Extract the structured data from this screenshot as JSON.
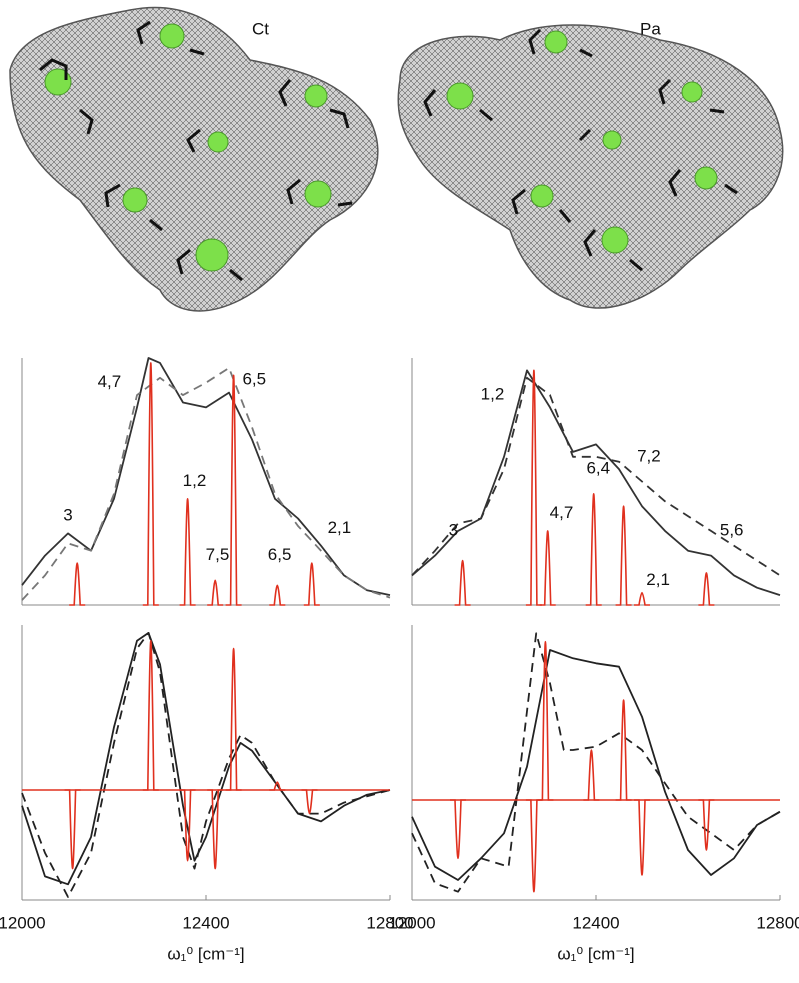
{
  "labels": {
    "left": "Ct",
    "right": "Pa"
  },
  "chart_data": [
    {
      "type": "line",
      "xlim": [
        12000,
        12800
      ],
      "ylim": [
        0,
        1.0
      ],
      "series": [
        {
          "color": "#333333",
          "style": "solid",
          "x": [
            12000,
            12050,
            12100,
            12150,
            12200,
            12250,
            12275,
            12300,
            12350,
            12400,
            12450,
            12500,
            12550,
            12600,
            12650,
            12700,
            12750,
            12800
          ],
          "values": [
            0.08,
            0.2,
            0.29,
            0.22,
            0.43,
            0.8,
            1.0,
            0.98,
            0.82,
            0.8,
            0.86,
            0.67,
            0.43,
            0.35,
            0.24,
            0.12,
            0.06,
            0.04
          ]
        },
        {
          "color": "#777777",
          "style": "dashed",
          "x": [
            12000,
            12050,
            12100,
            12150,
            12200,
            12250,
            12300,
            12350,
            12400,
            12450,
            12500,
            12550,
            12600,
            12650,
            12700,
            12750,
            12800
          ],
          "values": [
            0.02,
            0.12,
            0.25,
            0.22,
            0.45,
            0.85,
            0.92,
            0.85,
            0.9,
            0.96,
            0.72,
            0.45,
            0.32,
            0.22,
            0.12,
            0.06,
            0.03
          ]
        },
        {
          "color": "#e0301e",
          "style": "sticks",
          "x": [
            12120,
            12280,
            12360,
            12420,
            12460,
            12555,
            12630
          ],
          "values": [
            0.17,
            0.98,
            0.43,
            0.1,
            0.93,
            0.08,
            0.17
          ]
        }
      ],
      "annotations": [
        {
          "text": "3",
          "x": 12100,
          "y": 0.36
        },
        {
          "text": "4,7",
          "x": 12190,
          "y": 0.9
        },
        {
          "text": "1,2",
          "x": 12375,
          "y": 0.5
        },
        {
          "text": "7,5",
          "x": 12425,
          "y": 0.2
        },
        {
          "text": "6,5",
          "x": 12505,
          "y": 0.91
        },
        {
          "text": "6,5",
          "x": 12560,
          "y": 0.2
        },
        {
          "text": "2,1",
          "x": 12690,
          "y": 0.31
        }
      ]
    },
    {
      "type": "line",
      "xlim": [
        12000,
        12800
      ],
      "ylim": [
        0,
        1.0
      ],
      "series": [
        {
          "color": "#333333",
          "style": "solid",
          "x": [
            12000,
            12050,
            12100,
            12150,
            12200,
            12250,
            12300,
            12350,
            12400,
            12450,
            12500,
            12550,
            12600,
            12650,
            12700,
            12750,
            12800
          ],
          "values": [
            0.12,
            0.2,
            0.3,
            0.35,
            0.6,
            0.95,
            0.8,
            0.62,
            0.65,
            0.55,
            0.4,
            0.3,
            0.22,
            0.2,
            0.12,
            0.07,
            0.04
          ]
        },
        {
          "color": "#333333",
          "style": "dashed",
          "x": [
            12000,
            12050,
            12100,
            12150,
            12200,
            12250,
            12300,
            12350,
            12400,
            12450,
            12500,
            12550,
            12600,
            12650,
            12700,
            12750,
            12800
          ],
          "values": [
            0.12,
            0.22,
            0.33,
            0.35,
            0.55,
            0.92,
            0.85,
            0.6,
            0.6,
            0.58,
            0.5,
            0.42,
            0.36,
            0.3,
            0.24,
            0.18,
            0.12
          ]
        },
        {
          "color": "#e0301e",
          "style": "sticks",
          "x": [
            12110,
            12265,
            12295,
            12395,
            12460,
            12500,
            12640
          ],
          "values": [
            0.18,
            0.95,
            0.3,
            0.45,
            0.4,
            0.05,
            0.13
          ]
        }
      ],
      "annotations": [
        {
          "text": "3",
          "x": 12090,
          "y": 0.3
        },
        {
          "text": "1,2",
          "x": 12175,
          "y": 0.85
        },
        {
          "text": "4,7",
          "x": 12325,
          "y": 0.37
        },
        {
          "text": "6,4",
          "x": 12405,
          "y": 0.55
        },
        {
          "text": "7,2",
          "x": 12515,
          "y": 0.6
        },
        {
          "text": "2,1",
          "x": 12535,
          "y": 0.1
        },
        {
          "text": "5,6",
          "x": 12695,
          "y": 0.3
        }
      ]
    },
    {
      "type": "line",
      "xlim": [
        12000,
        12800
      ],
      "ylim": [
        -0.7,
        1.05
      ],
      "xticks": [
        12000,
        12400,
        12800
      ],
      "xlabel": "ω₁⁰ [cm⁻¹]",
      "series": [
        {
          "color": "#222222",
          "style": "solid",
          "x": [
            12000,
            12050,
            12100,
            12150,
            12200,
            12250,
            12275,
            12300,
            12350,
            12375,
            12400,
            12450,
            12475,
            12500,
            12550,
            12600,
            12650,
            12700,
            12750,
            12800
          ],
          "values": [
            -0.1,
            -0.55,
            -0.6,
            -0.3,
            0.4,
            0.95,
            1.0,
            0.8,
            -0.1,
            -0.45,
            -0.3,
            0.15,
            0.3,
            0.25,
            0.05,
            -0.15,
            -0.2,
            -0.1,
            -0.03,
            0
          ]
        },
        {
          "color": "#222222",
          "style": "dashed",
          "x": [
            12000,
            12050,
            12100,
            12150,
            12200,
            12250,
            12275,
            12300,
            12350,
            12375,
            12400,
            12450,
            12475,
            12500,
            12550,
            12600,
            12650,
            12700,
            12800
          ],
          "values": [
            -0.02,
            -0.4,
            -0.68,
            -0.4,
            0.3,
            0.9,
            1.0,
            0.75,
            -0.3,
            -0.5,
            -0.2,
            0.2,
            0.35,
            0.3,
            0.05,
            -0.15,
            -0.15,
            -0.08,
            0
          ]
        },
        {
          "color": "#e0301e",
          "style": "sticks",
          "x": [
            12110,
            12280,
            12360,
            12420,
            12460,
            12555,
            12625
          ],
          "values": [
            -0.5,
            0.95,
            -0.45,
            -0.5,
            0.9,
            0.05,
            -0.15
          ]
        }
      ]
    },
    {
      "type": "line",
      "xlim": [
        12000,
        12800
      ],
      "ylim": [
        -0.6,
        1.05
      ],
      "xticks": [
        12000,
        12400,
        12800
      ],
      "xlabel": "ω₁⁰ [cm⁻¹]",
      "series": [
        {
          "color": "#222222",
          "style": "solid",
          "x": [
            12000,
            12050,
            12100,
            12150,
            12200,
            12250,
            12300,
            12350,
            12400,
            12450,
            12500,
            12550,
            12600,
            12650,
            12700,
            12750,
            12800
          ],
          "values": [
            -0.1,
            -0.4,
            -0.48,
            -0.35,
            -0.2,
            0.2,
            0.9,
            0.85,
            0.82,
            0.8,
            0.5,
            0.05,
            -0.3,
            -0.45,
            -0.35,
            -0.15,
            -0.07
          ]
        },
        {
          "color": "#222222",
          "style": "dashed",
          "x": [
            12000,
            12050,
            12100,
            12150,
            12210,
            12240,
            12270,
            12300,
            12330,
            12350,
            12400,
            12450,
            12500,
            12550,
            12600,
            12650,
            12700,
            12750,
            12800
          ],
          "values": [
            -0.2,
            -0.5,
            -0.55,
            -0.35,
            -0.4,
            0.3,
            1.0,
            0.7,
            0.3,
            0.3,
            0.32,
            0.4,
            0.3,
            0.1,
            -0.1,
            -0.2,
            -0.3,
            -0.15,
            -0.07
          ]
        },
        {
          "color": "#e0301e",
          "style": "sticks",
          "x": [
            12100,
            12265,
            12290,
            12390,
            12460,
            12500,
            12640
          ],
          "values": [
            -0.35,
            -0.55,
            0.95,
            0.3,
            0.6,
            -0.45,
            -0.3
          ]
        }
      ]
    }
  ]
}
